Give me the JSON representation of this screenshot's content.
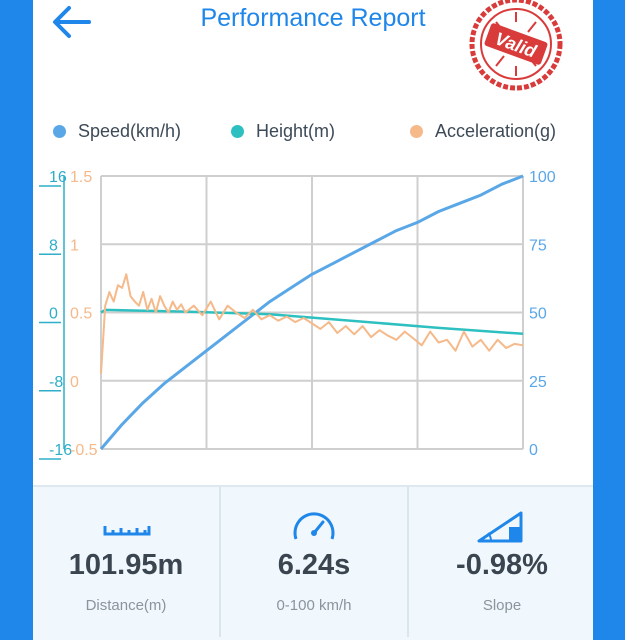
{
  "header": {
    "title": "Performance Report",
    "stamp_text": "Valid"
  },
  "colors": {
    "accent": "#1f86ea",
    "speed": "#5aa7e8",
    "height": "#2ec0c0",
    "acceleration": "#f5b98a",
    "stamp": "#d93b3b"
  },
  "legend": [
    {
      "label": "Speed(km/h)",
      "color": "#5aa7e8"
    },
    {
      "label": "Height(m)",
      "color": "#2ec0c0"
    },
    {
      "label": "Acceleration(g)",
      "color": "#f5b98a"
    }
  ],
  "chart_data": {
    "type": "line",
    "axes": {
      "height_ticks": [
        "16",
        "8",
        "0",
        "-8",
        "-16"
      ],
      "acceleration_ticks": [
        "1.5",
        "1",
        "0.5",
        "0",
        "-0.5"
      ],
      "speed_ticks": [
        "100",
        "75",
        "50",
        "25",
        "0"
      ],
      "height_range": [
        -16,
        16
      ],
      "acceleration_range": [
        -0.5,
        1.5
      ],
      "speed_range": [
        0,
        100
      ]
    },
    "grid": true,
    "legend_position": "top",
    "series": [
      {
        "name": "Speed(km/h)",
        "axis": "speed",
        "x": [
          0,
          0.05,
          0.1,
          0.15,
          0.2,
          0.25,
          0.3,
          0.35,
          0.4,
          0.45,
          0.5,
          0.55,
          0.6,
          0.65,
          0.7,
          0.75,
          0.8,
          0.85,
          0.9,
          0.95,
          1.0
        ],
        "values": [
          0,
          9,
          17,
          24,
          30,
          36,
          42,
          48,
          54,
          59,
          64,
          68,
          72,
          76,
          80,
          83,
          87,
          90,
          93,
          97,
          100
        ]
      },
      {
        "name": "Height(m)",
        "axis": "height",
        "x": [
          0.0,
          0.01,
          0.2,
          0.4,
          0.6,
          0.8,
          1.0
        ],
        "values": [
          0,
          0.3,
          0.1,
          -0.2,
          -1.0,
          -1.8,
          -2.5
        ]
      },
      {
        "name": "Acceleration(g)",
        "axis": "acceleration",
        "x": [
          0.0,
          0.01,
          0.02,
          0.03,
          0.04,
          0.05,
          0.06,
          0.07,
          0.08,
          0.09,
          0.1,
          0.11,
          0.12,
          0.13,
          0.14,
          0.15,
          0.16,
          0.17,
          0.18,
          0.19,
          0.2,
          0.22,
          0.24,
          0.26,
          0.28,
          0.3,
          0.32,
          0.34,
          0.36,
          0.38,
          0.4,
          0.42,
          0.44,
          0.46,
          0.48,
          0.5,
          0.52,
          0.54,
          0.56,
          0.58,
          0.6,
          0.62,
          0.64,
          0.66,
          0.68,
          0.7,
          0.72,
          0.74,
          0.76,
          0.78,
          0.8,
          0.82,
          0.84,
          0.86,
          0.88,
          0.9,
          0.92,
          0.94,
          0.96,
          0.98,
          1.0
        ],
        "values": [
          0.05,
          0.55,
          0.65,
          0.58,
          0.7,
          0.68,
          0.78,
          0.62,
          0.58,
          0.55,
          0.65,
          0.52,
          0.6,
          0.5,
          0.62,
          0.55,
          0.5,
          0.58,
          0.52,
          0.56,
          0.5,
          0.55,
          0.48,
          0.58,
          0.45,
          0.55,
          0.5,
          0.46,
          0.52,
          0.45,
          0.48,
          0.44,
          0.47,
          0.43,
          0.46,
          0.42,
          0.38,
          0.43,
          0.35,
          0.4,
          0.34,
          0.4,
          0.32,
          0.37,
          0.33,
          0.3,
          0.36,
          0.31,
          0.26,
          0.36,
          0.28,
          0.3,
          0.22,
          0.36,
          0.25,
          0.3,
          0.22,
          0.3,
          0.24,
          0.27,
          0.26
        ]
      }
    ]
  },
  "stats": [
    {
      "value": "101.95m",
      "label": "Distance(m)",
      "icon": "ruler-icon"
    },
    {
      "value": "6.24s",
      "label": "0-100 km/h",
      "icon": "speedometer-icon"
    },
    {
      "value": "-0.98%",
      "label": "Slope",
      "icon": "slope-icon"
    }
  ]
}
